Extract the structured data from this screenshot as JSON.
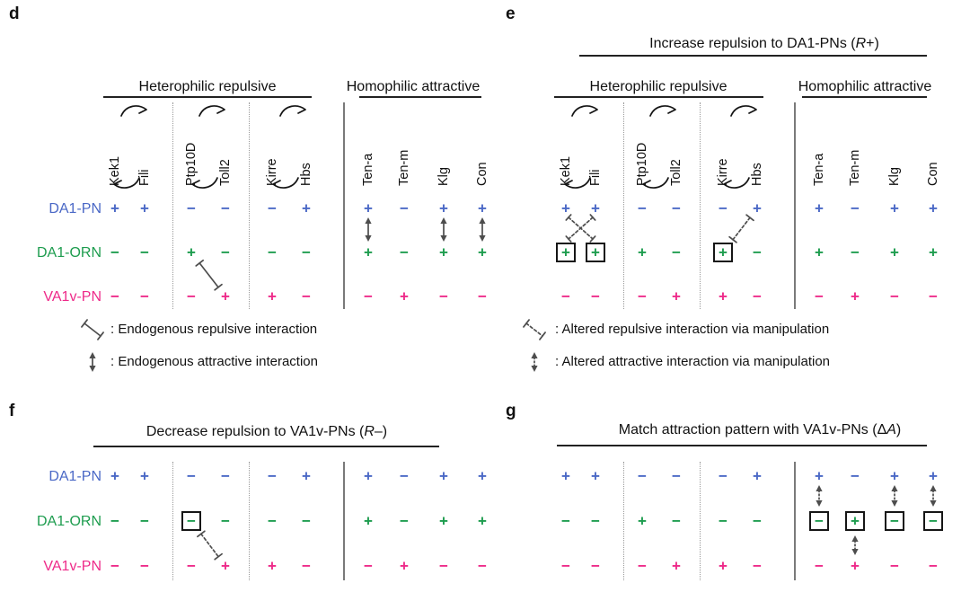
{
  "colors": {
    "text": "#111111",
    "interaction": "#4d4d4d",
    "box_border": "#161616",
    "divider_dotted": "#9a9a9a",
    "divider_solid": "#7a7a7a"
  },
  "columns": [
    "Kek1",
    "Fili",
    "Ptp10D",
    "Toll2",
    "Kirre",
    "Hbs",
    "Ten-a",
    "Ten-m",
    "Klg",
    "Con"
  ],
  "column_pairs": [
    [
      0,
      1
    ],
    [
      2,
      3
    ],
    [
      4,
      5
    ]
  ],
  "groups": [
    {
      "label": "Heterophilic repulsive"
    },
    {
      "label": "Homophilic attractive"
    }
  ],
  "rows": [
    {
      "label": "DA1-PN",
      "color": "#4a68c6"
    },
    {
      "label": "DA1-ORN",
      "color": "#1d9c4e"
    },
    {
      "label": "VA1v-PN",
      "color": "#ee2a89"
    }
  ],
  "panels": [
    {
      "id": "d",
      "letter": "d",
      "show_column_headers": true,
      "show_row_labels": true,
      "values": {
        "DA1-PN": [
          "+",
          "+",
          "−",
          "−",
          "−",
          "+",
          "+",
          "−",
          "+",
          "+"
        ],
        "DA1-ORN": [
          "−",
          "−",
          "+",
          "−",
          "−",
          "−",
          "+",
          "−",
          "+",
          "+"
        ],
        "VA1v-PN": [
          "−",
          "−",
          "−",
          "+",
          "+",
          "−",
          "−",
          "+",
          "−",
          "−"
        ]
      },
      "boxed_cells": [],
      "interactions": [
        {
          "kind": "repulsive",
          "style": "solid",
          "from": {
            "row": "DA1-ORN",
            "column": "Ptp10D"
          },
          "to": {
            "row": "VA1v-PN",
            "column": "Toll2"
          }
        },
        {
          "kind": "attractive",
          "style": "solid",
          "column": "Ten-a",
          "between": [
            "DA1-PN",
            "DA1-ORN"
          ]
        },
        {
          "kind": "attractive",
          "style": "solid",
          "column": "Klg",
          "between": [
            "DA1-PN",
            "DA1-ORN"
          ]
        },
        {
          "kind": "attractive",
          "style": "solid",
          "column": "Con",
          "between": [
            "DA1-PN",
            "DA1-ORN"
          ]
        }
      ],
      "legend": [
        {
          "icon": "repulsive-solid-icon",
          "text": ": Endogenous repulsive interaction"
        },
        {
          "icon": "attractive-solid-icon",
          "text": ": Endogenous attractive interaction"
        }
      ]
    },
    {
      "id": "e",
      "letter": "e",
      "title": {
        "before": "Increase repulsion to DA1-PNs (",
        "italic": "R",
        "after": "+)"
      },
      "show_column_headers": true,
      "show_row_labels": false,
      "values": {
        "DA1-PN": [
          "+",
          "+",
          "−",
          "−",
          "−",
          "+",
          "+",
          "−",
          "+",
          "+"
        ],
        "DA1-ORN": [
          "+",
          "+",
          "+",
          "−",
          "+",
          "−",
          "+",
          "−",
          "+",
          "+"
        ],
        "VA1v-PN": [
          "−",
          "−",
          "−",
          "+",
          "+",
          "−",
          "−",
          "+",
          "−",
          "−"
        ]
      },
      "boxed_cells": [
        {
          "row": "DA1-ORN",
          "column": "Kek1"
        },
        {
          "row": "DA1-ORN",
          "column": "Fili"
        },
        {
          "row": "DA1-ORN",
          "column": "Kirre"
        }
      ],
      "interactions": [
        {
          "kind": "repulsive-cross",
          "style": "dashed",
          "columns": [
            "Kek1",
            "Fili"
          ],
          "between": [
            "DA1-PN",
            "DA1-ORN"
          ]
        },
        {
          "kind": "repulsive",
          "style": "dashed",
          "from": {
            "row": "DA1-ORN",
            "column": "Kirre"
          },
          "to": {
            "row": "DA1-PN",
            "column": "Hbs"
          }
        }
      ],
      "legend": [
        {
          "icon": "repulsive-dashed-icon",
          "text": ": Altered repulsive interaction via manipulation"
        },
        {
          "icon": "attractive-dashed-icon",
          "text": ": Altered attractive interaction via manipulation"
        }
      ]
    },
    {
      "id": "f",
      "letter": "f",
      "title": {
        "before": "Decrease repulsion to VA1v-PNs (",
        "italic": "R",
        "after": "–)"
      },
      "show_column_headers": false,
      "show_row_labels": true,
      "values": {
        "DA1-PN": [
          "+",
          "+",
          "−",
          "−",
          "−",
          "+",
          "+",
          "−",
          "+",
          "+"
        ],
        "DA1-ORN": [
          "−",
          "−",
          "−",
          "−",
          "−",
          "−",
          "+",
          "−",
          "+",
          "+"
        ],
        "VA1v-PN": [
          "−",
          "−",
          "−",
          "+",
          "+",
          "−",
          "−",
          "+",
          "−",
          "−"
        ]
      },
      "boxed_cells": [
        {
          "row": "DA1-ORN",
          "column": "Ptp10D"
        }
      ],
      "interactions": [
        {
          "kind": "repulsive",
          "style": "dashed",
          "from": {
            "row": "DA1-ORN",
            "column": "Ptp10D"
          },
          "to": {
            "row": "VA1v-PN",
            "column": "Toll2"
          }
        }
      ]
    },
    {
      "id": "g",
      "letter": "g",
      "title": {
        "before": "Match attraction pattern with VA1v-PNs (Δ",
        "italic": "A",
        "after": ")"
      },
      "show_column_headers": false,
      "show_row_labels": false,
      "values": {
        "DA1-PN": [
          "+",
          "+",
          "−",
          "−",
          "−",
          "+",
          "+",
          "−",
          "+",
          "+"
        ],
        "DA1-ORN": [
          "−",
          "−",
          "+",
          "−",
          "−",
          "−",
          "−",
          "+",
          "−",
          "−"
        ],
        "VA1v-PN": [
          "−",
          "−",
          "−",
          "+",
          "+",
          "−",
          "−",
          "+",
          "−",
          "−"
        ]
      },
      "boxed_cells": [
        {
          "row": "DA1-ORN",
          "column": "Ten-a"
        },
        {
          "row": "DA1-ORN",
          "column": "Ten-m"
        },
        {
          "row": "DA1-ORN",
          "column": "Klg"
        },
        {
          "row": "DA1-ORN",
          "column": "Con"
        }
      ],
      "interactions": [
        {
          "kind": "attractive",
          "style": "dashed",
          "column": "Ten-a",
          "between": [
            "DA1-PN",
            "DA1-ORN"
          ]
        },
        {
          "kind": "attractive",
          "style": "dashed",
          "column": "Klg",
          "between": [
            "DA1-PN",
            "DA1-ORN"
          ]
        },
        {
          "kind": "attractive",
          "style": "dashed",
          "column": "Con",
          "between": [
            "DA1-PN",
            "DA1-ORN"
          ]
        },
        {
          "kind": "attractive",
          "style": "dashed",
          "column": "Ten-m",
          "between": [
            "DA1-ORN",
            "VA1v-PN"
          ]
        }
      ]
    }
  ]
}
